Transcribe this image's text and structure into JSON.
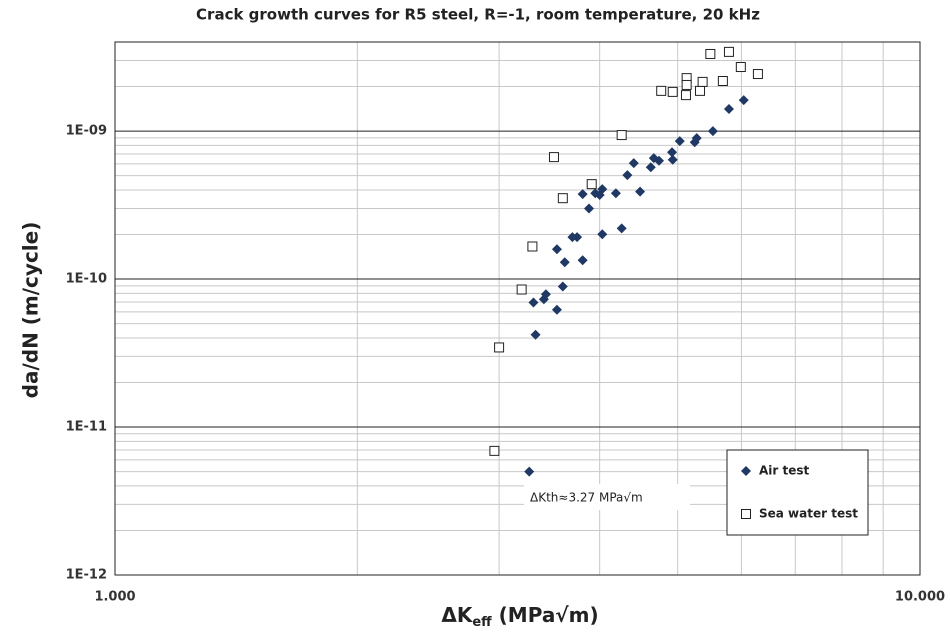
{
  "chart_data": {
    "type": "scatter",
    "title": "Crack growth curves for R5 steel, R=-1, room temperature, 20 kHz",
    "xlabel": {
      "main": "ΔK",
      "sub": "eff",
      "rest": " (MPa√m)"
    },
    "ylabel": "da/dN (m/cycle)",
    "annotation": "ΔKth≈3.27  MPa√m",
    "xscale": "log",
    "yscale": "log",
    "grid": true,
    "minor_grid": true,
    "legend": "lower right",
    "xlim": [
      1,
      10
    ],
    "ylim": [
      1e-12,
      4e-09
    ],
    "xticks": [
      {
        "value": 1,
        "label": "1.000"
      },
      {
        "value": 10,
        "label": "10.000"
      }
    ],
    "yticks": [
      {
        "value": 1e-12,
        "label": "1E-12"
      },
      {
        "value": 1e-11,
        "label": "1E-11"
      },
      {
        "value": 1e-10,
        "label": "1E-10"
      },
      {
        "value": 1e-09,
        "label": "1E-09"
      }
    ],
    "series": [
      {
        "name": "Air test",
        "color": "#1f3864",
        "marker": "diamond",
        "x": [
          3.27,
          3.33,
          3.31,
          3.41,
          3.43,
          3.54,
          3.6,
          3.54,
          3.62,
          3.7,
          3.75,
          3.81,
          3.81,
          3.88,
          3.95,
          4.03,
          4.03,
          4.0,
          4.19,
          4.26,
          4.33,
          4.41,
          4.49,
          4.63,
          4.67,
          4.74,
          4.92,
          4.93,
          5.03,
          5.25,
          5.28,
          5.53,
          5.79,
          6.04
        ],
        "values": [
          5e-12,
          4.2e-11,
          6.95e-11,
          7.3e-11,
          7.9e-11,
          6.2e-11,
          8.9e-11,
          1.59e-10,
          1.3e-10,
          1.92e-10,
          1.92e-10,
          1.34e-10,
          3.75e-10,
          3e-10,
          3.8e-10,
          4.05e-10,
          2.01e-10,
          3.7e-10,
          3.8e-10,
          2.2e-10,
          5.04e-10,
          6.07e-10,
          3.9e-10,
          5.7e-10,
          6.56e-10,
          6.3e-10,
          7.2e-10,
          6.4e-10,
          8.55e-10,
          8.4e-10,
          8.97e-10,
          1e-09,
          1.41e-09,
          1.62e-09
        ]
      },
      {
        "name": "Sea water test",
        "color": "#222222",
        "marker": "square",
        "x": [
          2.96,
          3.0,
          3.2,
          3.3,
          3.51,
          3.6,
          3.91,
          4.26,
          4.77,
          4.93,
          5.12,
          5.13,
          5.13,
          5.33,
          5.37,
          5.49,
          5.69,
          5.79,
          5.99,
          6.29
        ],
        "values": [
          6.9e-12,
          3.45e-11,
          8.5e-11,
          1.66e-10,
          6.67e-10,
          3.52e-10,
          4.38e-10,
          9.4e-10,
          1.87e-09,
          1.84e-09,
          1.75e-09,
          2.28e-09,
          2.05e-09,
          1.87e-09,
          2.15e-09,
          3.32e-09,
          2.18e-09,
          3.43e-09,
          2.71e-09,
          2.43e-09
        ]
      }
    ]
  }
}
